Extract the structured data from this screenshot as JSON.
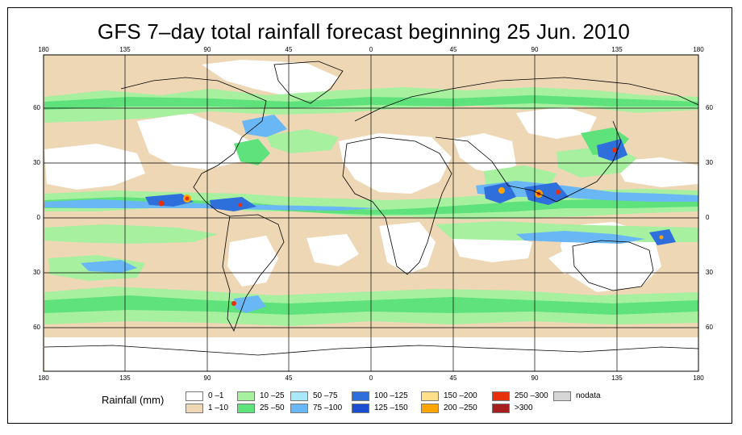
{
  "title": "GFS 7–day total rainfall forecast beginning 25 Jun. 2010",
  "axes": {
    "top_lon_ticks": [
      "180",
      "135",
      "90",
      "45",
      "0",
      "45",
      "90",
      "135",
      "180"
    ],
    "bottom_lon_ticks": [
      "180",
      "135",
      "90",
      "45",
      "0",
      "45",
      "90",
      "135",
      "180"
    ],
    "left_lat_ticks": [
      "60",
      "30",
      "0",
      "30",
      "60"
    ],
    "right_lat_ticks": [
      "60",
      "30",
      "0",
      "30",
      "60"
    ]
  },
  "legend": {
    "title": "Rainfall (mm)",
    "items": [
      {
        "label": "0 –1",
        "color": "#ffffff"
      },
      {
        "label": "1 –10",
        "color": "#eed7b5"
      },
      {
        "label": "10 –25",
        "color": "#a6f0a0"
      },
      {
        "label": "25 –50",
        "color": "#5fe27c"
      },
      {
        "label": "50 –75",
        "color": "#a8e8f8"
      },
      {
        "label": "75 –100",
        "color": "#6ab7f5"
      },
      {
        "label": "100 –125",
        "color": "#2f6fdc"
      },
      {
        "label": "125 –150",
        "color": "#1c4fd0"
      },
      {
        "label": "150 –200",
        "color": "#ffe08a"
      },
      {
        "label": "200 –250",
        "color": "#ffa500"
      },
      {
        "label": "250 –300",
        "color": "#e8300c"
      },
      {
        "label": ">300",
        "color": "#a81e1e"
      },
      {
        "label": "nodata",
        "color": "#d6d6d6"
      }
    ]
  },
  "colors": {
    "dry": "#ffffff",
    "light": "#eed7b5",
    "moderate": "#a6f0a0",
    "heavy": "#5fe27c",
    "very_heavy": "#6ab7f5",
    "extreme": "#2f6fdc",
    "peak_orange": "#ffa500",
    "peak_red": "#e8300c",
    "coastline": "#000000",
    "grid": "#000000"
  }
}
